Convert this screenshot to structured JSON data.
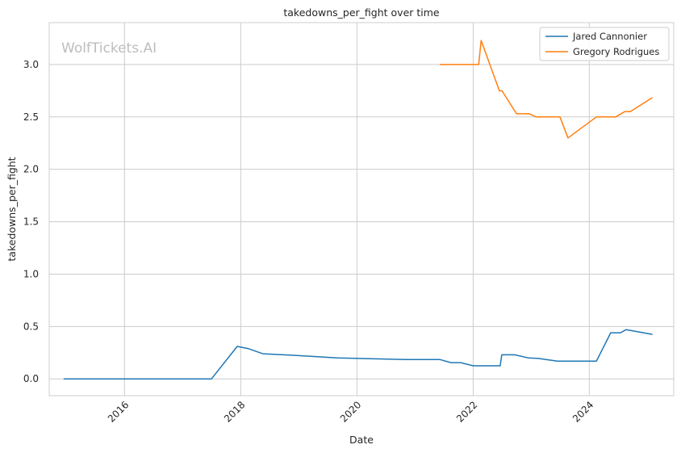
{
  "watermark": "WolfTickets.AI",
  "chart_data": {
    "type": "line",
    "title": "takedowns_per_fight over time",
    "xlabel": "Date",
    "ylabel": "takedowns_per_fight",
    "xlim": [
      "2014-09-15",
      "2025-06-15"
    ],
    "ylim": [
      -0.16,
      3.4
    ],
    "x_ticks": [
      "2016-01-01",
      "2018-01-01",
      "2020-01-01",
      "2022-01-01",
      "2024-01-01"
    ],
    "x_tick_labels": [
      "2016",
      "2018",
      "2020",
      "2022",
      "2024"
    ],
    "y_ticks": [
      0.0,
      0.5,
      1.0,
      1.5,
      2.0,
      2.5,
      3.0
    ],
    "y_tick_labels": [
      "0.0",
      "0.5",
      "1.0",
      "1.5",
      "2.0",
      "2.5",
      "3.0"
    ],
    "grid": true,
    "legend_position": "top-right",
    "series": [
      {
        "name": "Jared Cannonier",
        "color": "#1f77b4",
        "points": [
          [
            "2014-12-15",
            0.0
          ],
          [
            "2017-07-01",
            0.0
          ],
          [
            "2017-12-10",
            0.31
          ],
          [
            "2018-02-15",
            0.29
          ],
          [
            "2018-05-20",
            0.24
          ],
          [
            "2018-12-01",
            0.225
          ],
          [
            "2019-09-01",
            0.2
          ],
          [
            "2020-10-31",
            0.185
          ],
          [
            "2021-06-05",
            0.185
          ],
          [
            "2021-08-15",
            0.155
          ],
          [
            "2021-10-15",
            0.155
          ],
          [
            "2022-01-01",
            0.125
          ],
          [
            "2022-06-20",
            0.125
          ],
          [
            "2022-06-30",
            0.23
          ],
          [
            "2022-09-20",
            0.23
          ],
          [
            "2022-12-15",
            0.2
          ],
          [
            "2023-02-15",
            0.195
          ],
          [
            "2023-06-15",
            0.17
          ],
          [
            "2024-02-15",
            0.17
          ],
          [
            "2024-05-15",
            0.44
          ],
          [
            "2024-07-15",
            0.44
          ],
          [
            "2024-08-20",
            0.47
          ],
          [
            "2025-02-01",
            0.425
          ]
        ]
      },
      {
        "name": "Gregory Rodrigues",
        "color": "#ff7f0e",
        "points": [
          [
            "2021-06-05",
            3.0
          ],
          [
            "2022-02-05",
            3.0
          ],
          [
            "2022-02-20",
            3.23
          ],
          [
            "2022-06-15",
            2.75
          ],
          [
            "2022-07-01",
            2.75
          ],
          [
            "2022-10-01",
            2.53
          ],
          [
            "2022-12-20",
            2.53
          ],
          [
            "2023-02-01",
            2.5
          ],
          [
            "2023-07-01",
            2.5
          ],
          [
            "2023-08-20",
            2.3
          ],
          [
            "2024-02-15",
            2.5
          ],
          [
            "2024-06-15",
            2.5
          ],
          [
            "2024-08-10",
            2.55
          ],
          [
            "2024-09-15",
            2.55
          ],
          [
            "2025-02-01",
            2.685
          ]
        ]
      }
    ]
  }
}
